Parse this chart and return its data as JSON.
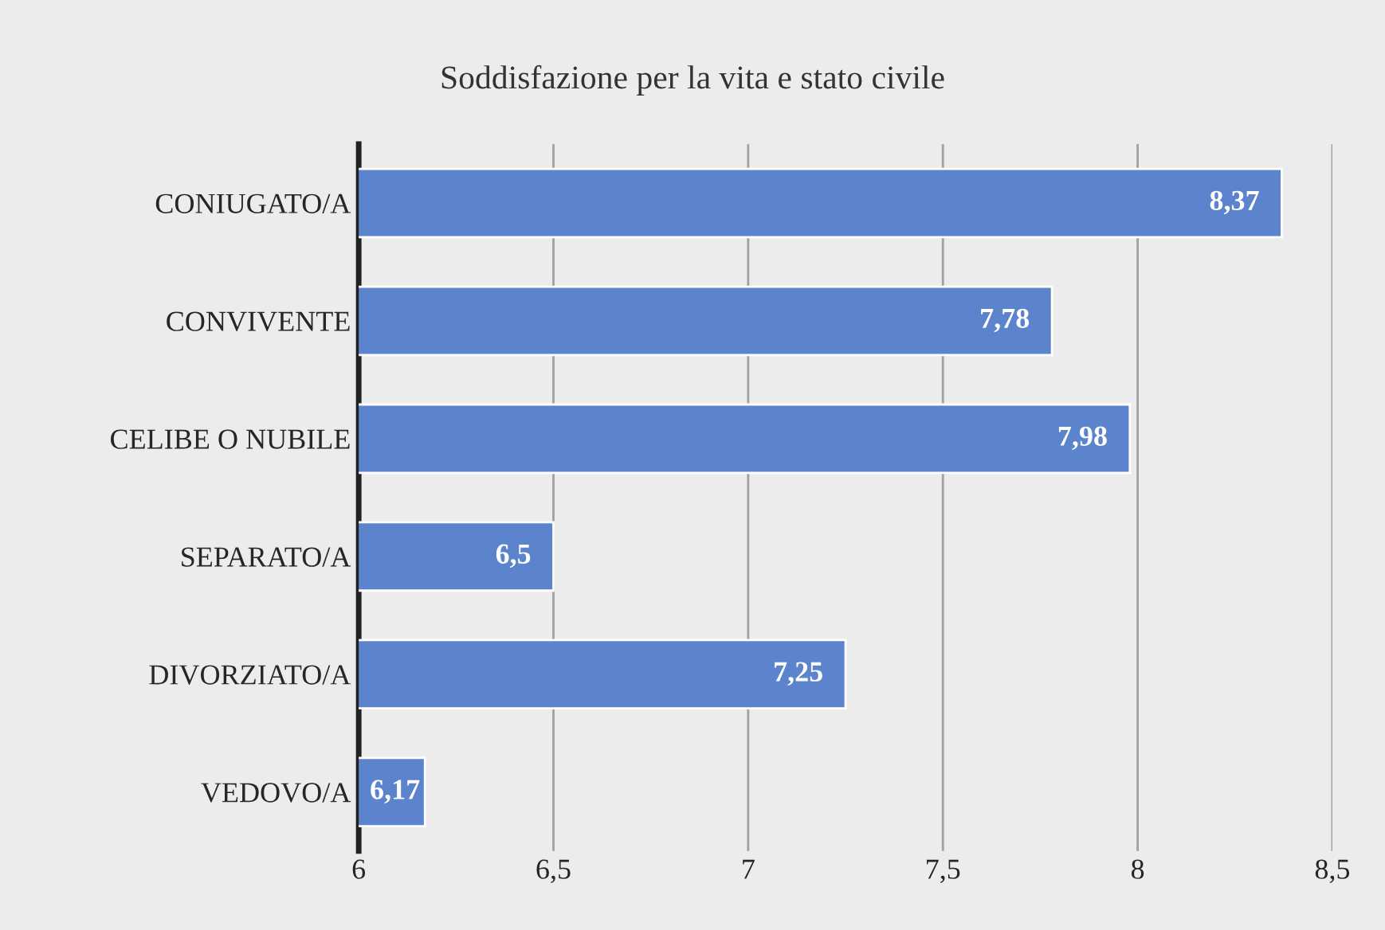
{
  "chart_data": {
    "type": "bar",
    "orientation": "horizontal",
    "title": "Soddisfazione per la vita e stato civile",
    "categories": [
      "CONIUGATO/A",
      "CONVIVENTE",
      "CELIBE O NUBILE",
      "SEPARATO/A",
      "DIVORZIATO/A",
      "VEDOVO/A"
    ],
    "values": [
      8.37,
      7.78,
      7.98,
      6.5,
      7.25,
      6.17
    ],
    "value_labels": [
      "8,37",
      "7,78",
      "7,98",
      "6,5",
      "7,25",
      "6,17"
    ],
    "color": "#5b84cc",
    "xlim": [
      6,
      8.5
    ],
    "xticks": [
      6,
      {
        "value": 6.5,
        "label": "6,5"
      },
      7,
      {
        "value": 7.5,
        "label": "7,5"
      },
      8,
      {
        "value": 8.5,
        "label": "8,5"
      }
    ],
    "grid": "x",
    "legend": false
  }
}
